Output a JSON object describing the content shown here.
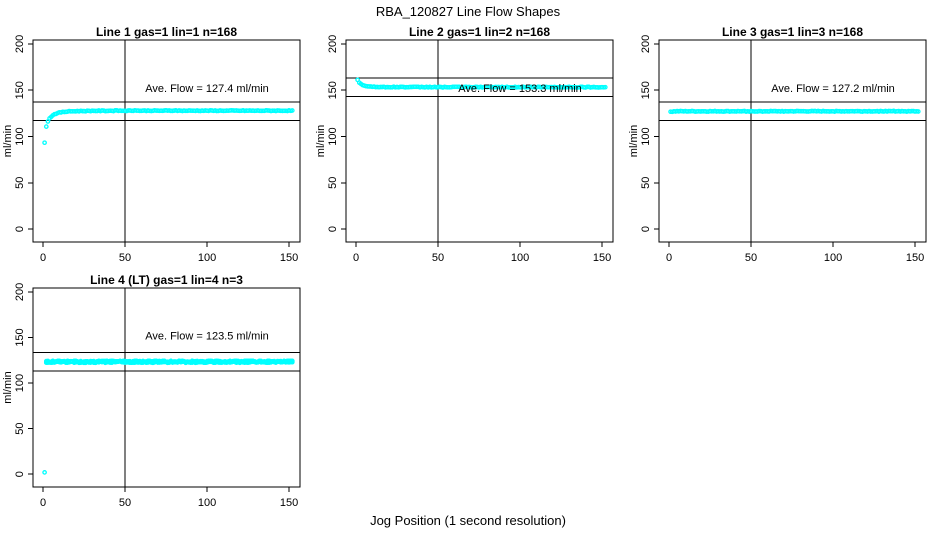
{
  "figure": {
    "title": "RBA_120827  Line Flow Shapes",
    "xlabel": "Jog Position (1 second resolution)",
    "point_color": "#00ffff",
    "axis_color": "#000000",
    "background": "#ffffff"
  },
  "chart_data": [
    {
      "type": "scatter",
      "title": "Line 1 gas=1 lin=1 n=168",
      "ylabel": "ml/min",
      "annotation": "Ave. Flow =  127.4  ml/min",
      "ave_flow": 127.4,
      "n": 168,
      "annotation_at": [
        100,
        148
      ],
      "hlines": [
        137.4,
        117.4
      ],
      "vline": 50,
      "xticks": [
        0,
        50,
        100,
        150
      ],
      "yticks": [
        0,
        50,
        100,
        150,
        200
      ],
      "xlim": [
        -6.1,
        156.7
      ],
      "ylim": [
        -14,
        204.3
      ],
      "x_start": 1,
      "x_end": 152,
      "profile": [
        [
          1,
          93
        ],
        [
          2,
          111
        ],
        [
          3,
          116.5
        ],
        [
          4,
          119.5
        ],
        [
          5,
          121.5
        ],
        [
          6,
          123
        ],
        [
          7,
          124
        ],
        [
          8,
          124.8
        ],
        [
          10,
          125.8
        ],
        [
          12,
          126.4
        ],
        [
          15,
          127
        ],
        [
          20,
          127.4
        ],
        [
          30,
          127.7
        ],
        [
          50,
          127.9
        ],
        [
          152,
          127.9
        ]
      ],
      "pre_points": [],
      "noise": 0.35,
      "layers": 1,
      "seed": 1,
      "col": 0,
      "row": 0
    },
    {
      "type": "scatter",
      "title": "Line 2 gas=1 lin=2 n=168",
      "ylabel": "ml/min",
      "annotation": "Ave. Flow =  153.3  ml/min",
      "ave_flow": 153.3,
      "n": 168,
      "annotation_at": [
        100,
        148
      ],
      "hlines": [
        163.3,
        143.3
      ],
      "vline": 50,
      "xticks": [
        0,
        50,
        100,
        150
      ],
      "yticks": [
        0,
        50,
        100,
        150,
        200
      ],
      "xlim": [
        -6.1,
        156.7
      ],
      "ylim": [
        -14,
        204.3
      ],
      "x_start": 1,
      "x_end": 152,
      "profile": [
        [
          1,
          161
        ],
        [
          2,
          158
        ],
        [
          3,
          156.5
        ],
        [
          4,
          155.5
        ],
        [
          5,
          155
        ],
        [
          7,
          154.3
        ],
        [
          10,
          153.8
        ],
        [
          15,
          153.5
        ],
        [
          25,
          153.4
        ],
        [
          152,
          153.3
        ]
      ],
      "pre_points": [],
      "noise": 0.4,
      "layers": 1,
      "seed": 2,
      "col": 1,
      "row": 0
    },
    {
      "type": "scatter",
      "title": "Line 3 gas=1 lin=3 n=168",
      "ylabel": "ml/min",
      "annotation": "Ave. Flow =  127.2  ml/min",
      "ave_flow": 127.2,
      "n": 168,
      "annotation_at": [
        100,
        148
      ],
      "hlines": [
        137.2,
        117.2
      ],
      "vline": 50,
      "xticks": [
        0,
        50,
        100,
        150
      ],
      "yticks": [
        0,
        50,
        100,
        150,
        200
      ],
      "xlim": [
        -6.1,
        156.7
      ],
      "ylim": [
        -14,
        204.3
      ],
      "x_start": 1,
      "x_end": 152,
      "profile": [
        [
          1,
          126.8
        ],
        [
          4,
          127.2
        ],
        [
          152,
          127.3
        ]
      ],
      "pre_points": [],
      "noise": 0.35,
      "layers": 1,
      "seed": 3,
      "col": 2,
      "row": 0
    },
    {
      "type": "scatter",
      "title": "Line 4 (LT) gas=1 lin=4 n=3",
      "ylabel": "ml/min",
      "annotation": "Ave. Flow =  123.5  ml/min",
      "ave_flow": 123.5,
      "n": 3,
      "annotation_at": [
        100,
        148
      ],
      "hlines": [
        133.5,
        113.5
      ],
      "vline": 50,
      "xticks": [
        0,
        50,
        100,
        150
      ],
      "yticks": [
        0,
        50,
        100,
        150,
        200
      ],
      "xlim": [
        -6.1,
        156.7
      ],
      "ylim": [
        -14,
        204.3
      ],
      "x_start": 2,
      "x_end": 152,
      "profile": [
        [
          2,
          123.3
        ],
        [
          152,
          123.4
        ]
      ],
      "pre_points": [
        [
          1,
          2
        ]
      ],
      "noise": 1.1,
      "layers": 3,
      "seed": 4,
      "col": 0,
      "row": 1
    }
  ]
}
